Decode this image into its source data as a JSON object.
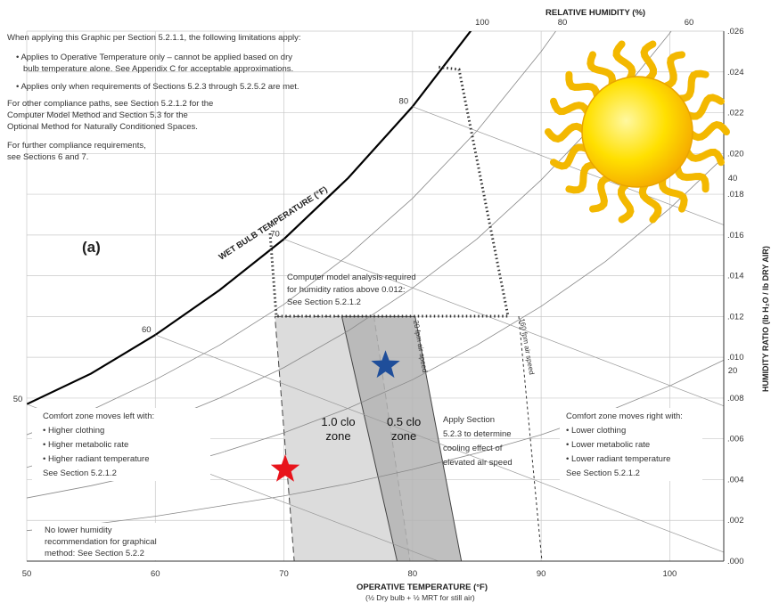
{
  "chart_data": {
    "type": "psychrometric",
    "rh_title": "RELATIVE HUMIDITY  (%)",
    "wet_bulb_title": "WET BULB TEMPERATURE  (°F)",
    "x_label": "OPERATIVE TEMPERATURE  (°F)",
    "x_sublabel": "(½ Dry bulb + ½ MRT for still air)",
    "y_label": "HUMIDITY RATIO  (lb H₂O / lb DRY AIR)",
    "panel_label": "(a)",
    "xlim": [
      50,
      104.2
    ],
    "xticks": [
      50,
      60,
      70,
      80,
      90,
      100
    ],
    "ylim": [
      0,
      0.026
    ],
    "yticks": [
      {
        "value": 0,
        "label": ".000"
      },
      {
        "value": 0.002,
        "label": ".002"
      },
      {
        "value": 0.004,
        "label": ".004"
      },
      {
        "value": 0.006,
        "label": ".006"
      },
      {
        "value": 0.008,
        "label": ".008"
      },
      {
        "value": 0.01,
        "label": ".010"
      },
      {
        "value": 0.012,
        "label": ".012"
      },
      {
        "value": 0.014,
        "label": ".014"
      },
      {
        "value": 0.016,
        "label": ".016"
      },
      {
        "value": 0.018,
        "label": ".018"
      },
      {
        "value": 0.02,
        "label": ".020"
      },
      {
        "value": 0.022,
        "label": ".022"
      },
      {
        "value": 0.024,
        "label": ".024"
      },
      {
        "value": 0.026,
        "label": ".026"
      }
    ],
    "grid": true,
    "rh_curves": [
      {
        "name": "100",
        "x": [
          50,
          55,
          60,
          65,
          70,
          75,
          80,
          85,
          90
        ],
        "values": [
          0.0077,
          0.0092,
          0.0111,
          0.0133,
          0.0158,
          0.0188,
          0.0223,
          0.0264,
          0.0312
        ]
      },
      {
        "name": "80",
        "x": [
          50,
          55,
          60,
          65,
          70,
          75,
          80,
          85,
          90,
          95
        ],
        "values": [
          0.0062,
          0.0074,
          0.0089,
          0.0106,
          0.0126,
          0.015,
          0.0178,
          0.0211,
          0.025,
          0.0294
        ]
      },
      {
        "name": "60",
        "x": [
          50,
          55,
          60,
          65,
          70,
          75,
          80,
          85,
          90,
          95,
          100,
          105
        ],
        "values": [
          0.0046,
          0.0055,
          0.0067,
          0.008,
          0.0095,
          0.0113,
          0.0134,
          0.0158,
          0.0187,
          0.022,
          0.0259,
          0.0304
        ]
      },
      {
        "name": "40",
        "x": [
          50,
          55,
          60,
          65,
          70,
          75,
          80,
          85,
          90,
          95,
          100,
          105
        ],
        "values": [
          0.0031,
          0.0037,
          0.0044,
          0.0053,
          0.0063,
          0.0075,
          0.0089,
          0.0106,
          0.0125,
          0.0147,
          0.0173,
          0.0203
        ]
      },
      {
        "name": "20",
        "x": [
          50,
          55,
          60,
          65,
          70,
          75,
          80,
          85,
          90,
          95,
          100,
          105
        ],
        "values": [
          0.0015,
          0.0018,
          0.0022,
          0.0027,
          0.0032,
          0.0038,
          0.0045,
          0.0053,
          0.0062,
          0.0073,
          0.0086,
          0.0101
        ]
      }
    ],
    "wet_bulb_lines": [
      {
        "name": "50",
        "x": [
          50,
          82
        ],
        "values": [
          0.0077,
          0
        ]
      },
      {
        "name": "60",
        "x": [
          60,
          106
        ],
        "values": [
          0.0111,
          0
        ]
      },
      {
        "name": "70",
        "x": [
          70,
          136
        ],
        "values": [
          0.0158,
          0
        ]
      },
      {
        "name": "80",
        "x": [
          80,
          173
        ],
        "values": [
          0.0223,
          0
        ]
      }
    ],
    "zones": [
      {
        "label": [
          "1.0 clo",
          "zone"
        ],
        "color": "#dcdcdc",
        "x": [
          69.3,
          77.0,
          79.8,
          70.8
        ],
        "values": [
          0.012,
          0.012,
          0,
          0
        ]
      },
      {
        "label": [
          "0.5 clo",
          "zone"
        ],
        "color": "#b4b4b4",
        "x": [
          74.5,
          80.2,
          83.8,
          78.8
        ],
        "values": [
          0.012,
          0.012,
          0,
          0
        ]
      }
    ],
    "markers": [
      {
        "color": "#1f4e9a",
        "x": 77.9,
        "value": 0.0096
      },
      {
        "color": "#e8141c",
        "x": 70.1,
        "value": 0.0045
      }
    ],
    "air_speed_labels": [
      "20 fpm air speed",
      "160 fpm air speed"
    ],
    "intro": [
      "When applying this Graphic per Section 5.2.1.1, the following limitations apply:",
      "• Applies to Operative Temperature only – cannot be applied based on dry",
      "bulb temperature alone. See Appendix C for acceptable approximations.",
      "• Applies only when requirements of Sections 5.2.3 through 5.2.5.2 are met.",
      "For other compliance paths, see Section 5.2.1.2 for the",
      "Computer Model Method and Section 5.3 for the",
      "Optional Method for Naturally Conditioned Spaces.",
      "For further compliance requirements,",
      "see Sections 6 and 7."
    ],
    "computer_note": [
      "Computer model analysis required",
      "for humidity ratios above 0.012:",
      "See Section 5.2.1.2"
    ],
    "left_note": [
      "Comfort zone moves left with:",
      "• Higher clothing",
      "• Higher metabolic rate",
      "• Higher radiant temperature",
      "See Section 5.2.1.2"
    ],
    "middle_note": [
      "Apply Section",
      "5.2.3 to determine",
      "cooling effect of",
      "elevated air speed"
    ],
    "right_note": [
      "Comfort zone moves right with:",
      "• Lower clothing",
      "• Lower metabolic rate",
      "• Lower radiant temperature",
      "See Section 5.2.1.2"
    ],
    "bottom_note": [
      "No lower humidity",
      "recommendation for graphical",
      "method: See Section 5.2.2"
    ]
  }
}
